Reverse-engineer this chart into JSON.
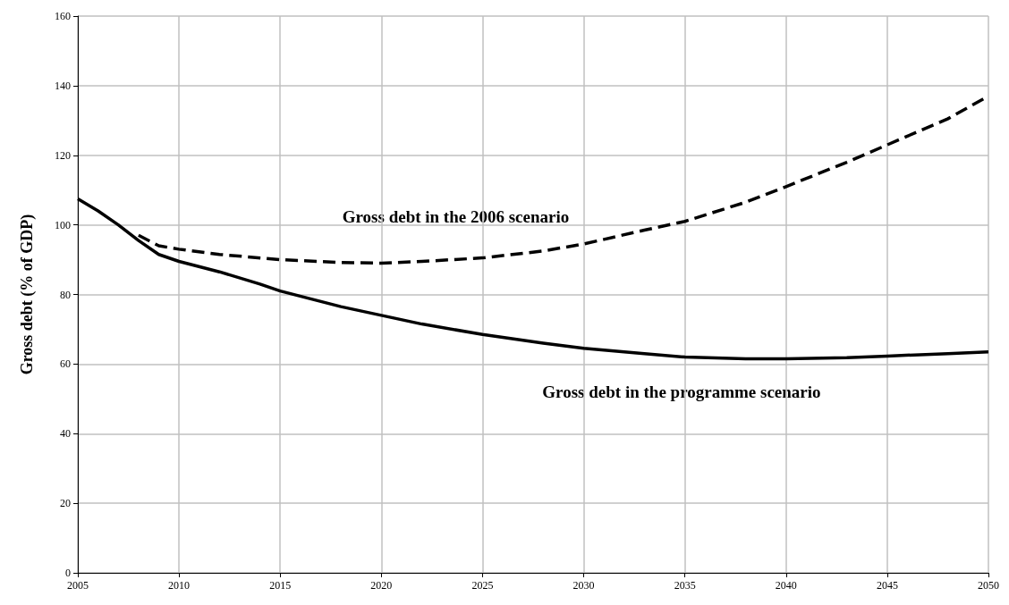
{
  "chart_data": {
    "type": "line",
    "ylabel": "Gross debt (% of GDP)",
    "xlim": [
      2005,
      2050
    ],
    "xticks": [
      2005,
      2010,
      2015,
      2020,
      2025,
      2030,
      2035,
      2040,
      2045,
      2050
    ],
    "ylim": [
      0,
      160
    ],
    "yticks": [
      0,
      20,
      40,
      60,
      80,
      100,
      120,
      140,
      160
    ],
    "grid": true,
    "legend": false,
    "marker": "none",
    "series": [
      {
        "name": "Gross debt in the 2006 scenario",
        "color": "#000000",
        "line_style": "dashed",
        "x": [
          2008,
          2009,
          2010,
          2012,
          2015,
          2018,
          2020,
          2022,
          2025,
          2028,
          2030,
          2033,
          2035,
          2038,
          2040,
          2043,
          2045,
          2048,
          2050
        ],
        "values": [
          97,
          94,
          93,
          91.5,
          90,
          89.2,
          89,
          89.5,
          90.5,
          92.5,
          94.5,
          98.5,
          101,
          106.5,
          111,
          118,
          123,
          130.5,
          137
        ]
      },
      {
        "name": "Gross debt in the programme scenario",
        "color": "#000000",
        "line_style": "solid",
        "x": [
          2005,
          2006,
          2007,
          2008,
          2009,
          2010,
          2012,
          2014,
          2015,
          2018,
          2020,
          2022,
          2025,
          2028,
          2030,
          2033,
          2035,
          2038,
          2040,
          2043,
          2045,
          2048,
          2050
        ],
        "values": [
          107.5,
          104,
          100,
          95.5,
          91.5,
          89.5,
          86.5,
          83,
          81,
          76.5,
          74,
          71.5,
          68.5,
          66,
          64.5,
          63,
          62,
          61.5,
          61.5,
          61.8,
          62.3,
          63,
          63.5
        ]
      }
    ]
  }
}
